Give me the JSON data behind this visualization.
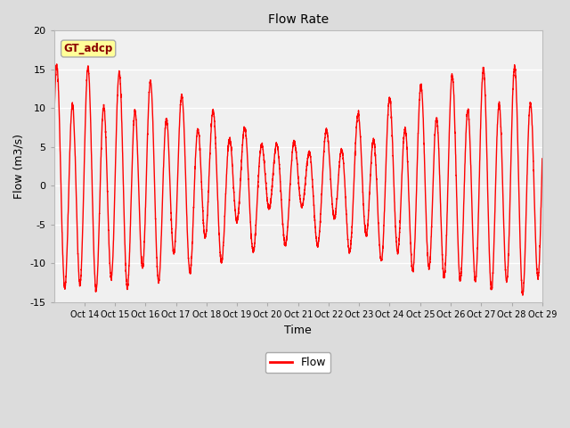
{
  "title": "Flow Rate",
  "xlabel": "Time",
  "ylabel": "Flow (m3/s)",
  "ylim": [
    -15,
    20
  ],
  "yticks": [
    -15,
    -10,
    -5,
    0,
    5,
    10,
    15,
    20
  ],
  "line_color": "#FF0000",
  "line_width": 1.0,
  "fig_bg_color": "#DCDCDC",
  "plot_bg_color": "#F0F0F0",
  "annotation_text": "GT_adcp",
  "annotation_bg": "#FFFF99",
  "annotation_border": "#AAAAAA",
  "annotation_text_color": "#8B0000",
  "legend_label": "Flow",
  "xlim_start": 13.0,
  "xlim_end": 29.0
}
